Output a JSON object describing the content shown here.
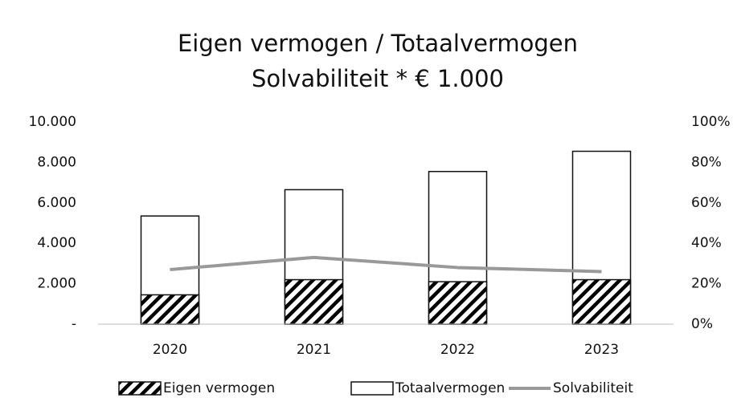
{
  "chart_data": {
    "type": "bar",
    "title": "Eigen vermogen / Totaalvermogen",
    "subtitle": "Solvabiliteit * € 1.000",
    "categories": [
      "2020",
      "2021",
      "2022",
      "2023"
    ],
    "series": [
      {
        "name": "Totaalvermogen",
        "color": "#ffffff",
        "values": [
          5350,
          6650,
          7550,
          8550
        ]
      },
      {
        "name": "Eigen vermogen",
        "color": "#000000",
        "hatch": true,
        "values": [
          1450,
          2200,
          2100,
          2200
        ]
      },
      {
        "name": "Solvabiliteit",
        "color": "#999999",
        "type": "line",
        "axis": "y2",
        "values": [
          27,
          33,
          28,
          26
        ]
      }
    ],
    "legend_order": [
      1,
      0,
      2
    ],
    "ylim": [
      0,
      10000
    ],
    "yticks": [
      {
        "value": 0,
        "label": "-"
      },
      {
        "value": 2000,
        "label": "2.000"
      },
      {
        "value": 4000,
        "label": "4.000"
      },
      {
        "value": 6000,
        "label": "6.000"
      },
      {
        "value": 8000,
        "label": "8.000"
      },
      {
        "value": 10000,
        "label": "10.000"
      }
    ],
    "y2lim": [
      0,
      100
    ],
    "y2ticks": [
      {
        "value": 0,
        "label": "0%"
      },
      {
        "value": 20,
        "label": "20%"
      },
      {
        "value": 40,
        "label": "40%"
      },
      {
        "value": 60,
        "label": "60%"
      },
      {
        "value": 80,
        "label": "80%"
      },
      {
        "value": 100,
        "label": "100%"
      }
    ],
    "grid": false
  }
}
